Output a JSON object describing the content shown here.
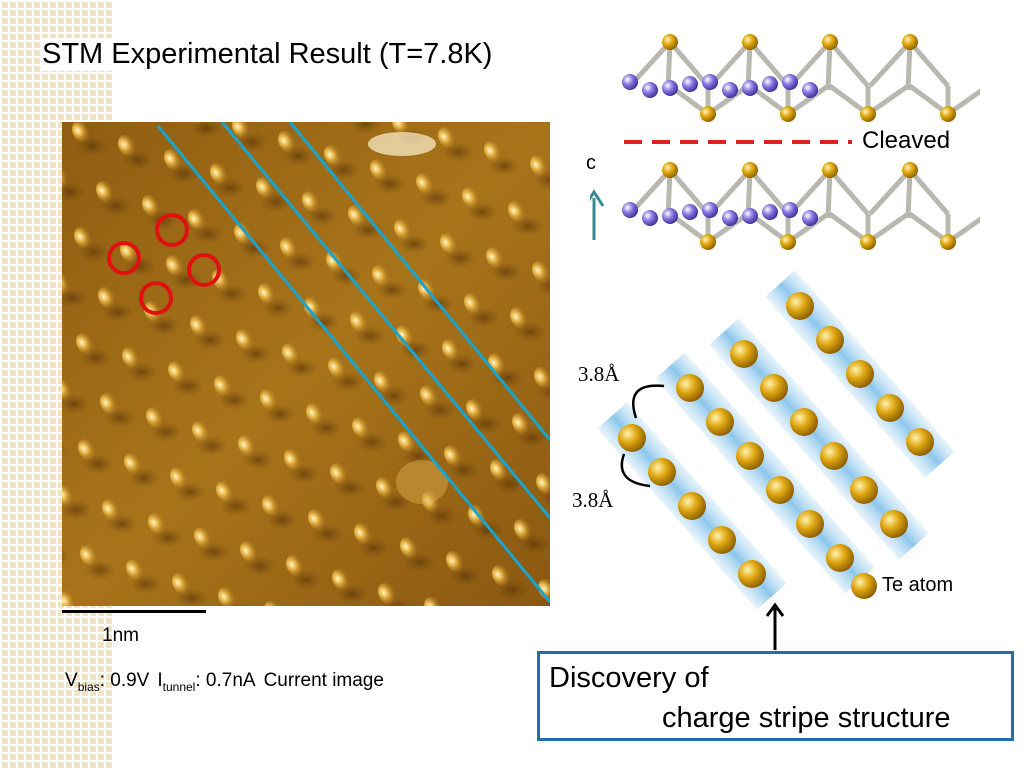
{
  "slide": {
    "title": "STM Experimental Result (T=7.8K)"
  },
  "stm": {
    "scale_label": "1nm",
    "vbias_symbol": "V",
    "vbias_sub": "bias",
    "vbias_value": ": 0.9V",
    "itunnel_symbol": "I",
    "itunnel_sub": "tunnel",
    "itunnel_value": ": 0.7nA",
    "mode": "Current image",
    "colors": {
      "marker": "#e01010",
      "stripe_line": "#1aa3cc",
      "surface": "#a8741a"
    }
  },
  "crystal": {
    "cleaved_label": "Cleaved",
    "axis_label": "c",
    "colors": {
      "cleave_line": "#e02020",
      "axis_arrow": "#3a8a96",
      "te_atom": "#d8a010",
      "other_atom": "#8a7ae0"
    }
  },
  "stripes": {
    "distance_1": "3.8Å",
    "distance_2": "3.8Å",
    "legend": "Te atom",
    "colors": {
      "band": "#a8d4f0",
      "atom": "#d8a010"
    }
  },
  "discovery": {
    "line1": "Discovery of",
    "line2": "charge stripe structure",
    "border_color": "#1e6eb4"
  }
}
